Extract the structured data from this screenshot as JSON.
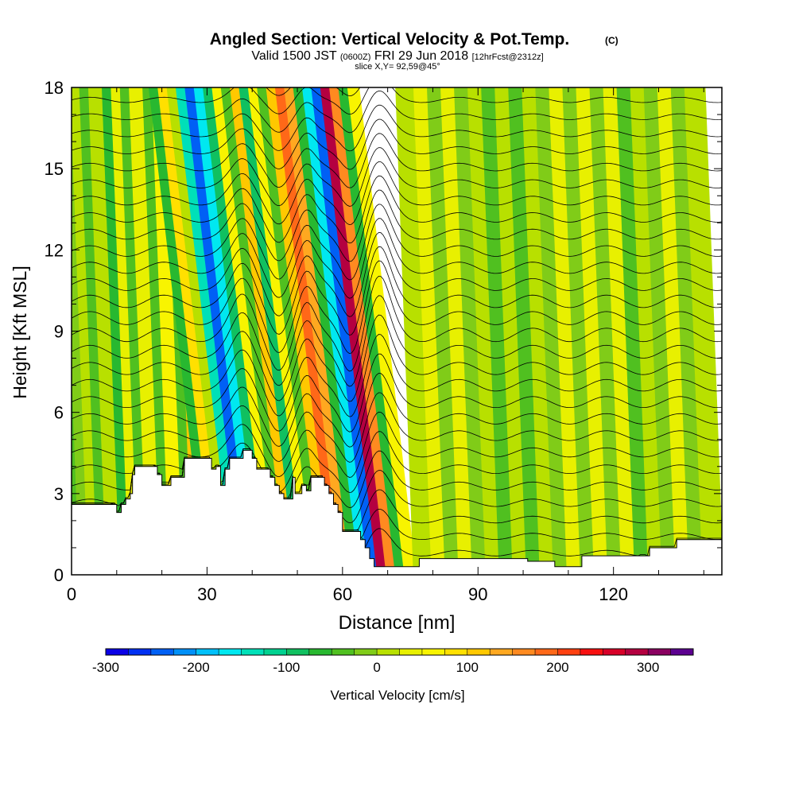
{
  "header": {
    "title": "Angled Section: Vertical Velocity & Pot.Temp.",
    "title_units": "(C)",
    "valid_prefix": "Valid 1500 JST",
    "valid_zulu": "(0600Z)",
    "valid_date": "FRI 29 Jun 2018",
    "forecast": "[12hrFcst@2312z]",
    "slice": "slice X,Y= 92,59@45°"
  },
  "chart_data": {
    "type": "heatmap",
    "xlabel": "Distance [nm]",
    "ylabel": "Height [Kft MSL]",
    "xlim": [
      0,
      144
    ],
    "ylim": [
      0,
      18
    ],
    "x_ticks": [
      0,
      30,
      60,
      90,
      120
    ],
    "y_ticks": [
      0,
      3,
      6,
      9,
      12,
      15,
      18
    ],
    "colorbar": {
      "label": "Vertical Velocity [cm/s]",
      "ticks": [
        -300,
        -200,
        -100,
        0,
        100,
        200,
        300
      ],
      "range": [
        -300,
        350
      ],
      "step": 25,
      "colors": [
        "#0a00e6",
        "#0030f2",
        "#0060f5",
        "#0090f8",
        "#00c0fa",
        "#00e8f0",
        "#00e0b8",
        "#00d290",
        "#10c060",
        "#28b830",
        "#50c020",
        "#80cc18",
        "#b8e000",
        "#e8f000",
        "#f8f400",
        "#ffe000",
        "#ffc800",
        "#ffa820",
        "#ff8a20",
        "#ff6818",
        "#ff4010",
        "#f81010",
        "#d80028",
        "#b40040",
        "#8a0060",
        "#5c0090"
      ]
    },
    "terrain_profile": [
      [
        0,
        2.6
      ],
      [
        10,
        2.6
      ],
      [
        10,
        2.3
      ],
      [
        11,
        2.3
      ],
      [
        11,
        2.6
      ],
      [
        12,
        2.6
      ],
      [
        12,
        2.8
      ],
      [
        13,
        2.8
      ],
      [
        13,
        3
      ],
      [
        13.5,
        3
      ],
      [
        13.5,
        3.7
      ],
      [
        14,
        3.7
      ],
      [
        14,
        4
      ],
      [
        19,
        4
      ],
      [
        19,
        3.7
      ],
      [
        20,
        3.7
      ],
      [
        20,
        3.3
      ],
      [
        22,
        3.3
      ],
      [
        22,
        3.6
      ],
      [
        25,
        3.6
      ],
      [
        25,
        4.3
      ],
      [
        31,
        4.3
      ],
      [
        31,
        3.9
      ],
      [
        32,
        3.9
      ],
      [
        32,
        4
      ],
      [
        33,
        4
      ],
      [
        33,
        3.3
      ],
      [
        34,
        3.3
      ],
      [
        34,
        3.9
      ],
      [
        35,
        3.9
      ],
      [
        35,
        4.3
      ],
      [
        38,
        4.3
      ],
      [
        38,
        4.6
      ],
      [
        40,
        4.6
      ],
      [
        40,
        4.3
      ],
      [
        41,
        4.3
      ],
      [
        41,
        3.9
      ],
      [
        44,
        3.9
      ],
      [
        44,
        3.6
      ],
      [
        45,
        3.6
      ],
      [
        45,
        3.3
      ],
      [
        46,
        3.3
      ],
      [
        46,
        3
      ],
      [
        47,
        3
      ],
      [
        47,
        2.8
      ],
      [
        49,
        2.8
      ],
      [
        49,
        3.6
      ],
      [
        49.5,
        3.6
      ],
      [
        49.5,
        3
      ],
      [
        51,
        3
      ],
      [
        51,
        3.3
      ],
      [
        52,
        3.3
      ],
      [
        52,
        3.1
      ],
      [
        53,
        3.1
      ],
      [
        53,
        3.6
      ],
      [
        56,
        3.6
      ],
      [
        56,
        3.3
      ],
      [
        57,
        3.3
      ],
      [
        57,
        3
      ],
      [
        58,
        3
      ],
      [
        58,
        2.6
      ],
      [
        59,
        2.6
      ],
      [
        59,
        2.3
      ],
      [
        60,
        2.3
      ],
      [
        60,
        1.6
      ],
      [
        64,
        1.6
      ],
      [
        64,
        1.3
      ],
      [
        65,
        1.3
      ],
      [
        65,
        1
      ],
      [
        66,
        1
      ],
      [
        66,
        0.6
      ],
      [
        67,
        0.6
      ],
      [
        67,
        0.3
      ],
      [
        77,
        0.3
      ],
      [
        77,
        0.6
      ],
      [
        101,
        0.6
      ],
      [
        101,
        0.5
      ],
      [
        107,
        0.5
      ],
      [
        107,
        0.3
      ],
      [
        113,
        0.3
      ],
      [
        113,
        0.7
      ],
      [
        128,
        0.7
      ],
      [
        128,
        1
      ],
      [
        134,
        1
      ],
      [
        134,
        1.3
      ],
      [
        144,
        1.3
      ]
    ],
    "velocity_bands": [
      {
        "x0": 0,
        "x1": 2,
        "w": -40
      },
      {
        "x0": 2,
        "x1": 4,
        "w": -10
      },
      {
        "x0": 4,
        "x1": 6,
        "w": 10
      },
      {
        "x0": 6,
        "x1": 8,
        "w": -50
      },
      {
        "x0": 8,
        "x1": 11,
        "w": 20
      },
      {
        "x0": 11,
        "x1": 13,
        "w": -60
      },
      {
        "x0": 13,
        "x1": 15,
        "w": 40
      },
      {
        "x0": 15,
        "x1": 17,
        "w": -40
      },
      {
        "x0": 17,
        "x1": 20,
        "w": 40
      },
      {
        "x0": 20,
        "x1": 22,
        "w": -50
      },
      {
        "x0": 22,
        "x1": 25,
        "w": 60
      },
      {
        "x0": 25,
        "x1": 27,
        "w": -40
      },
      {
        "x0": 27,
        "x1": 30,
        "w": 110
      },
      {
        "x0": 30,
        "x1": 32,
        "w": -60
      },
      {
        "x0": 32,
        "x1": 34,
        "w": 90
      },
      {
        "x0": 34,
        "x1": 36,
        "w": 20
      },
      {
        "x0": 36,
        "x1": 38,
        "w": -150
      },
      {
        "x0": 38,
        "x1": 40,
        "w": -230
      },
      {
        "x0": 40,
        "x1": 42,
        "w": -160
      },
      {
        "x0": 42,
        "x1": 44,
        "w": -90
      },
      {
        "x0": 44,
        "x1": 46,
        "w": 70
      },
      {
        "x0": 46,
        "x1": 48,
        "w": -40
      },
      {
        "x0": 48,
        "x1": 50,
        "w": 120
      },
      {
        "x0": 50,
        "x1": 52,
        "w": -80
      },
      {
        "x0": 52,
        "x1": 54,
        "w": 70
      },
      {
        "x0": 54,
        "x1": 56,
        "w": -30
      },
      {
        "x0": 56,
        "x1": 58,
        "w": 120
      },
      {
        "x0": 58,
        "x1": 60,
        "w": 180
      },
      {
        "x0": 60,
        "x1": 62,
        "w": 140
      },
      {
        "x0": 62,
        "x1": 64,
        "w": -60
      },
      {
        "x0": 64,
        "x1": 66,
        "w": -170
      },
      {
        "x0": 66,
        "x1": 68,
        "w": -250
      },
      {
        "x0": 68,
        "x1": 70,
        "w": 290
      },
      {
        "x0": 70,
        "x1": 72,
        "w": 150
      },
      {
        "x0": 72,
        "x1": 74,
        "w": -60
      },
      {
        "x0": 74,
        "x1": 76,
        "w": 60
      },
      {
        "x0": 76,
        "x1": 80,
        "w": 10
      },
      {
        "x0": 80,
        "x1": 83,
        "w": 40
      },
      {
        "x0": 83,
        "x1": 86,
        "w": -10
      },
      {
        "x0": 86,
        "x1": 89,
        "w": 30
      },
      {
        "x0": 89,
        "x1": 92,
        "w": -20
      },
      {
        "x0": 92,
        "x1": 95,
        "w": 20
      },
      {
        "x0": 95,
        "x1": 98,
        "w": -30
      },
      {
        "x0": 98,
        "x1": 101,
        "w": 10
      },
      {
        "x0": 101,
        "x1": 104,
        "w": -30
      },
      {
        "x0": 104,
        "x1": 107,
        "w": 20
      },
      {
        "x0": 107,
        "x1": 110,
        "w": -20
      },
      {
        "x0": 110,
        "x1": 113,
        "w": 30
      },
      {
        "x0": 113,
        "x1": 116,
        "w": -20
      },
      {
        "x0": 116,
        "x1": 119,
        "w": 40
      },
      {
        "x0": 119,
        "x1": 122,
        "w": -20
      },
      {
        "x0": 122,
        "x1": 125,
        "w": 30
      },
      {
        "x0": 125,
        "x1": 128,
        "w": -30
      },
      {
        "x0": 128,
        "x1": 131,
        "w": 20
      },
      {
        "x0": 131,
        "x1": 134,
        "w": -20
      },
      {
        "x0": 134,
        "x1": 137,
        "w": 30
      },
      {
        "x0": 137,
        "x1": 140,
        "w": -20
      },
      {
        "x0": 140,
        "x1": 144,
        "w": 20
      }
    ]
  }
}
